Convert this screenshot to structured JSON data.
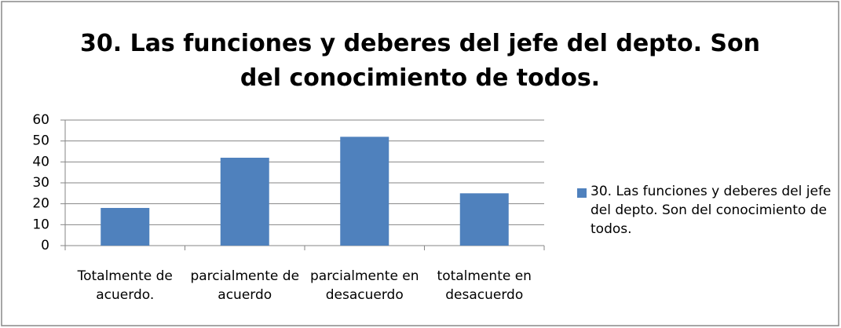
{
  "chart_data": {
    "type": "bar",
    "title": "30. Las funciones y deberes del jefe del depto. Son del conocimiento de todos.",
    "categories": [
      "Totalmente de acuerdo.",
      "parcialmente de acuerdo",
      "parcialmente en desacuerdo",
      "totalmente en desacuerdo"
    ],
    "series": [
      {
        "name": "30. Las funciones y deberes del jefe del depto. Son del conocimiento de todos.",
        "color": "#4f81bd",
        "values": [
          18,
          42,
          52,
          25
        ]
      }
    ],
    "ylim": [
      0,
      60
    ],
    "yticks": [
      0,
      10,
      20,
      30,
      40,
      50,
      60
    ],
    "grid": true,
    "legend": "right"
  }
}
